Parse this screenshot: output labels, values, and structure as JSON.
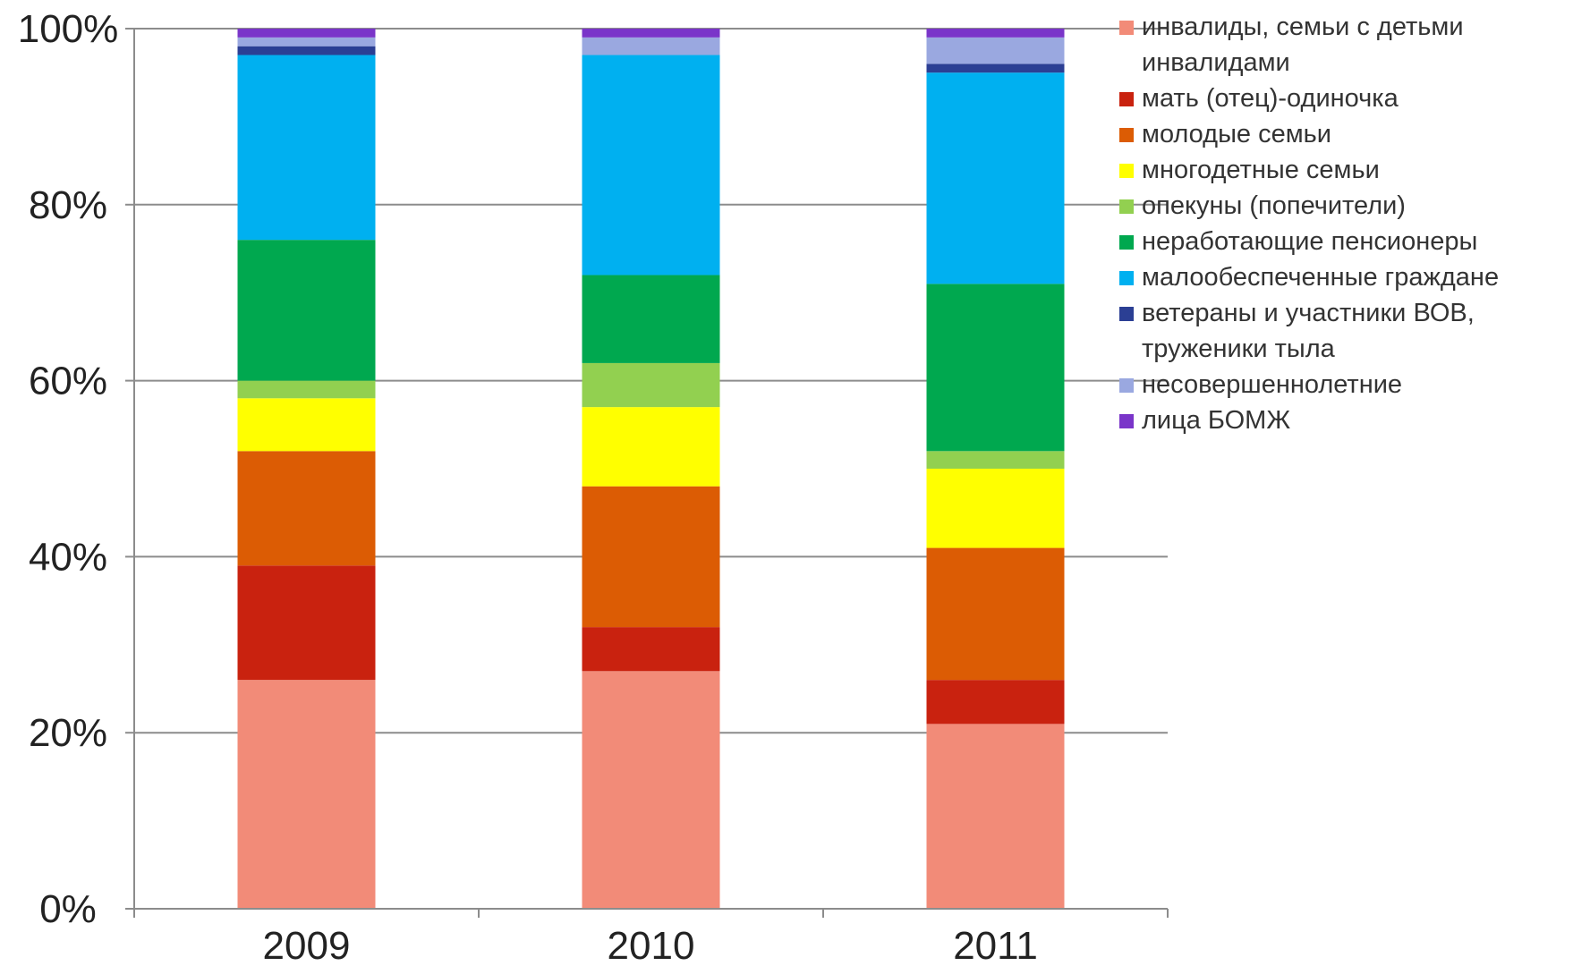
{
  "chart_data": {
    "type": "bar",
    "stacked": true,
    "normalized": true,
    "categories": [
      "2009",
      "2010",
      "2011"
    ],
    "ylim": [
      0,
      100
    ],
    "yticks": [
      "0%",
      "20%",
      "40%",
      "60%",
      "80%",
      "100%"
    ],
    "grid": true,
    "legend_position": "right",
    "series": [
      {
        "name": "инвалиды, семьи с детьми инвалидами",
        "color": "#f28b78",
        "values": [
          26,
          27,
          21
        ]
      },
      {
        "name": "мать (отец)-одиночка",
        "color": "#c9220f",
        "values": [
          13,
          5,
          5
        ]
      },
      {
        "name": "молодые семьи",
        "color": "#dc5c04",
        "values": [
          13,
          16,
          15
        ]
      },
      {
        "name": "многодетные семьи",
        "color": "#ffff00",
        "values": [
          6,
          9,
          9
        ]
      },
      {
        "name": "опекуны (попечители)",
        "color": "#92d050",
        "values": [
          2,
          5,
          2
        ]
      },
      {
        "name": "неработающие пенсионеры",
        "color": "#00a84f",
        "values": [
          16,
          10,
          19
        ]
      },
      {
        "name": "малообеспеченные граждане",
        "color": "#00b0f0",
        "values": [
          21,
          25,
          24
        ]
      },
      {
        "name": "ветераны и участники ВОВ, труженики тыла",
        "color": "#2b3f94",
        "values": [
          1,
          0,
          1
        ]
      },
      {
        "name": "несовершеннолетние",
        "color": "#9aa8e0",
        "values": [
          1,
          2,
          3
        ]
      },
      {
        "name": "лица БОМЖ",
        "color": "#7a35c9",
        "values": [
          1,
          1,
          1
        ]
      }
    ]
  },
  "legend_labels": {
    "s0": "инвалиды, семьи с детьми инвалидами",
    "s1": "мать (отец)-одиночка",
    "s2": "молодые семьи",
    "s3": "многодетные семьи",
    "s4": "опекуны (попечители)",
    "s5": "неработающие пенсионеры",
    "s6": "малообеспеченные граждане",
    "s7": "ветераны и участники ВОВ, труженики тыла",
    "s8": "несовершеннолетние",
    "s9": "лица БОМЖ"
  }
}
